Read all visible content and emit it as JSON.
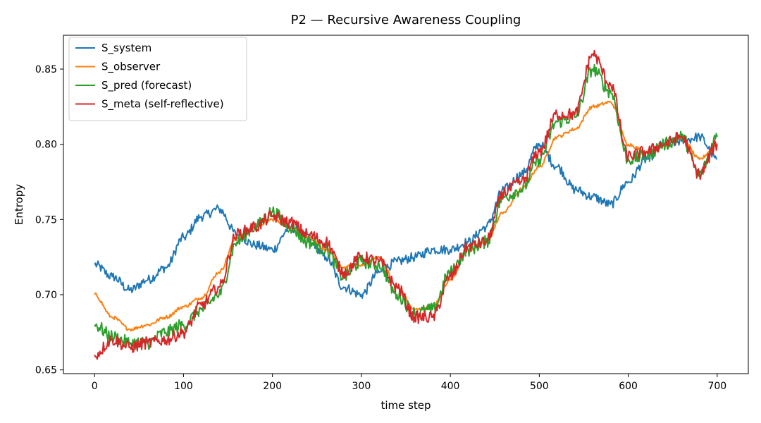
{
  "chart_data": {
    "type": "line",
    "title": "P2 — Recursive Awareness Coupling",
    "xlabel": "time step",
    "ylabel": "Entropy",
    "xlim": [
      -35,
      735
    ],
    "ylim": [
      0.6475,
      0.8725
    ],
    "xticks": [
      0,
      100,
      200,
      300,
      400,
      500,
      600,
      700
    ],
    "yticks": [
      0.65,
      0.7,
      0.75,
      0.8,
      0.85
    ],
    "ytick_labels": [
      "0.65",
      "0.70",
      "0.75",
      "0.80",
      "0.85"
    ],
    "grid": false,
    "legend_position": "top-left",
    "x": [
      0,
      20,
      40,
      60,
      80,
      100,
      120,
      140,
      160,
      180,
      200,
      220,
      240,
      260,
      280,
      300,
      320,
      340,
      360,
      380,
      400,
      420,
      440,
      460,
      480,
      500,
      520,
      540,
      560,
      580,
      600,
      620,
      640,
      660,
      680,
      700
    ],
    "series": [
      {
        "name": "S_system",
        "color": "#1f77b4",
        "values": [
          0.72,
          0.712,
          0.703,
          0.71,
          0.718,
          0.738,
          0.752,
          0.757,
          0.74,
          0.733,
          0.73,
          0.745,
          0.738,
          0.725,
          0.705,
          0.7,
          0.715,
          0.722,
          0.725,
          0.73,
          0.73,
          0.735,
          0.745,
          0.77,
          0.78,
          0.8,
          0.785,
          0.77,
          0.765,
          0.76,
          0.775,
          0.79,
          0.8,
          0.802,
          0.805,
          0.79
        ]
      },
      {
        "name": "S_observer",
        "color": "#ff7f0e",
        "values": [
          0.7,
          0.685,
          0.677,
          0.68,
          0.685,
          0.692,
          0.698,
          0.715,
          0.738,
          0.745,
          0.75,
          0.745,
          0.738,
          0.73,
          0.718,
          0.72,
          0.725,
          0.705,
          0.69,
          0.692,
          0.71,
          0.73,
          0.735,
          0.755,
          0.77,
          0.785,
          0.805,
          0.81,
          0.825,
          0.828,
          0.8,
          0.795,
          0.8,
          0.805,
          0.79,
          0.8
        ]
      },
      {
        "name": "S_pred (forecast)",
        "color": "#2ca02c",
        "values": [
          0.68,
          0.672,
          0.668,
          0.668,
          0.675,
          0.68,
          0.69,
          0.7,
          0.735,
          0.745,
          0.755,
          0.745,
          0.735,
          0.73,
          0.712,
          0.722,
          0.72,
          0.7,
          0.688,
          0.69,
          0.715,
          0.73,
          0.735,
          0.765,
          0.77,
          0.79,
          0.815,
          0.818,
          0.85,
          0.835,
          0.79,
          0.792,
          0.8,
          0.805,
          0.78,
          0.805
        ]
      },
      {
        "name": "S_meta (self-reflective)",
        "color": "#d62728",
        "values": [
          0.66,
          0.67,
          0.665,
          0.668,
          0.67,
          0.675,
          0.693,
          0.705,
          0.74,
          0.745,
          0.752,
          0.748,
          0.74,
          0.735,
          0.715,
          0.725,
          0.722,
          0.705,
          0.685,
          0.685,
          0.712,
          0.732,
          0.735,
          0.768,
          0.775,
          0.795,
          0.82,
          0.82,
          0.86,
          0.84,
          0.792,
          0.795,
          0.8,
          0.805,
          0.78,
          0.8
        ]
      }
    ]
  }
}
